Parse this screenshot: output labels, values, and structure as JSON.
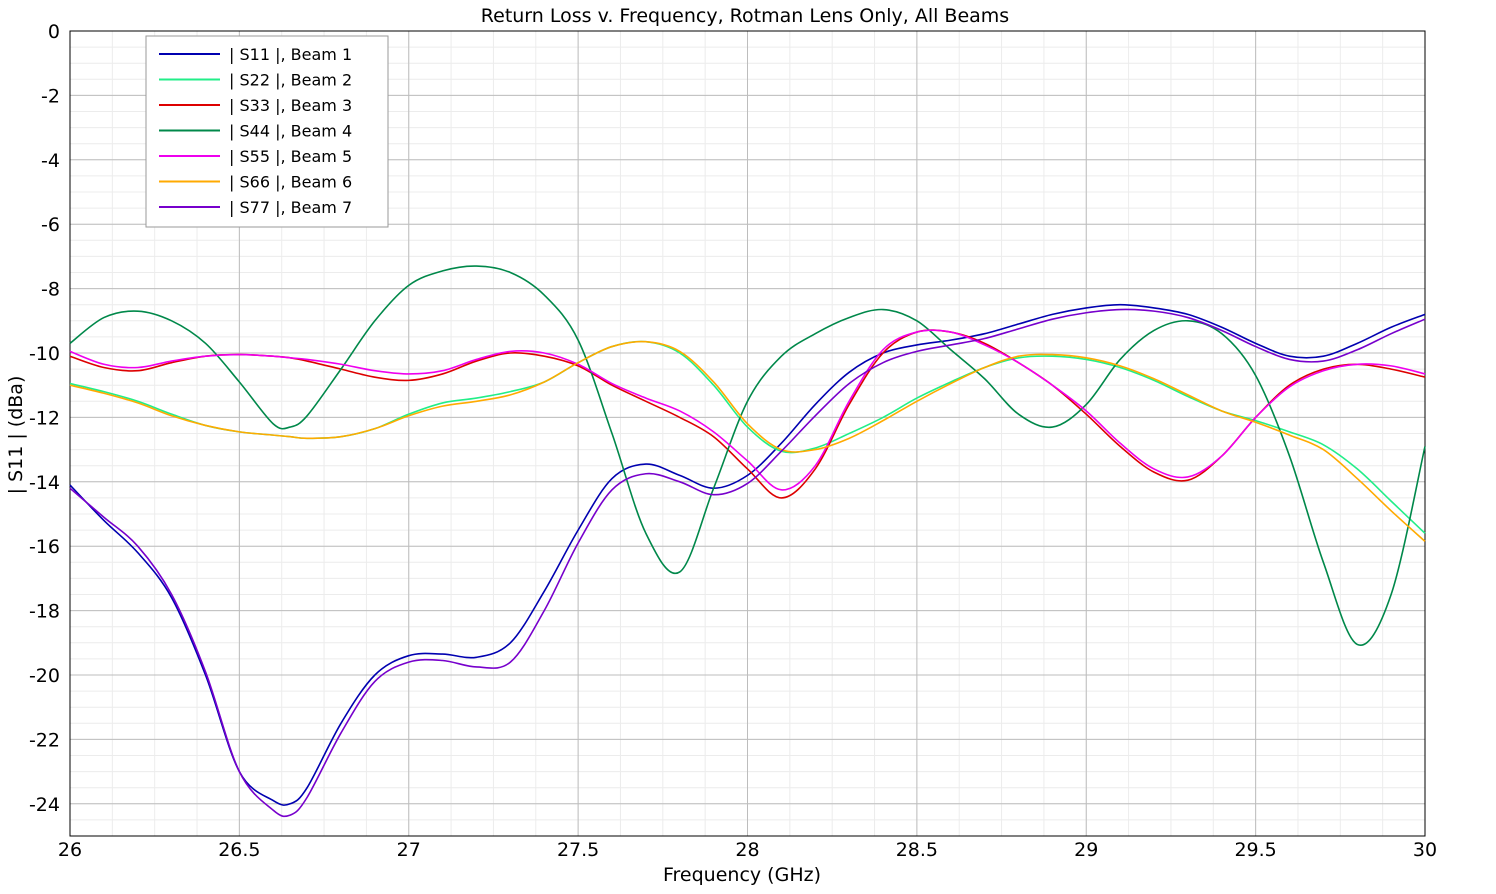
{
  "chart_data": {
    "type": "line",
    "title": "Return Loss v. Frequency, Rotman Lens Only, All Beams",
    "xlabel": "Frequency (GHz)",
    "ylabel": "| S11 | (dBa)",
    "xlim": [
      26,
      30
    ],
    "ylim": [
      -25,
      0
    ],
    "xticks": [
      26,
      26.5,
      27,
      27.5,
      28,
      28.5,
      29,
      29.5,
      30
    ],
    "xtick_labels": [
      "26",
      "26.5",
      "27",
      "27.5",
      "28",
      "28.5",
      "29",
      "29.5",
      "30"
    ],
    "yticks": [
      0,
      -2,
      -4,
      -6,
      -8,
      -10,
      -12,
      -14,
      -16,
      -18,
      -20,
      -22,
      -24
    ],
    "ytick_labels": [
      "0",
      "-2",
      "-4",
      "-6",
      "-8",
      "-10",
      "-12",
      "-14",
      "-16",
      "-18",
      "-20",
      "-22",
      "-24"
    ],
    "grid": true,
    "legend_position": "top-left",
    "x": [
      26.0,
      26.1,
      26.2,
      26.3,
      26.4,
      26.5,
      26.6,
      26.65,
      26.7,
      26.8,
      26.9,
      27.0,
      27.1,
      27.2,
      27.3,
      27.4,
      27.5,
      27.6,
      27.7,
      27.8,
      27.9,
      28.0,
      28.1,
      28.2,
      28.3,
      28.4,
      28.5,
      28.6,
      28.7,
      28.8,
      28.9,
      29.0,
      29.1,
      29.2,
      29.3,
      29.4,
      29.5,
      29.6,
      29.7,
      29.8,
      29.9,
      30.0
    ],
    "series": [
      {
        "name": "| S11 |, Beam 1",
        "color": "#0000b0",
        "values": [
          -14.1,
          -15.2,
          -16.2,
          -17.6,
          -20.0,
          -23.0,
          -23.9,
          -24.0,
          -23.5,
          -21.5,
          -20.0,
          -19.4,
          -19.35,
          -19.45,
          -19.0,
          -17.4,
          -15.5,
          -13.9,
          -13.45,
          -13.8,
          -14.2,
          -13.8,
          -12.8,
          -11.6,
          -10.6,
          -10.0,
          -9.75,
          -9.6,
          -9.4,
          -9.1,
          -8.8,
          -8.6,
          -8.5,
          -8.6,
          -8.8,
          -9.2,
          -9.7,
          -10.1,
          -10.1,
          -9.7,
          -9.2,
          -8.8
        ]
      },
      {
        "name": "| S22 |, Beam 2",
        "color": "#22ee88",
        "values": [
          -10.95,
          -11.2,
          -11.5,
          -11.9,
          -12.25,
          -12.45,
          -12.55,
          -12.6,
          -12.65,
          -12.6,
          -12.35,
          -11.9,
          -11.55,
          -11.4,
          -11.2,
          -10.9,
          -10.3,
          -9.8,
          -9.65,
          -10.0,
          -11.0,
          -12.3,
          -13.05,
          -12.95,
          -12.5,
          -12.0,
          -11.4,
          -10.9,
          -10.45,
          -10.15,
          -10.1,
          -10.2,
          -10.45,
          -10.85,
          -11.35,
          -11.8,
          -12.1,
          -12.45,
          -12.85,
          -13.6,
          -14.6,
          -15.6
        ]
      },
      {
        "name": "| S33 |, Beam 3",
        "color": "#dd0000",
        "values": [
          -10.1,
          -10.45,
          -10.55,
          -10.3,
          -10.1,
          -10.05,
          -10.1,
          -10.15,
          -10.25,
          -10.5,
          -10.75,
          -10.85,
          -10.65,
          -10.25,
          -10.0,
          -10.1,
          -10.4,
          -11.0,
          -11.5,
          -12.0,
          -12.6,
          -13.6,
          -14.5,
          -13.6,
          -11.6,
          -10.0,
          -9.35,
          -9.35,
          -9.7,
          -10.3,
          -11.0,
          -11.9,
          -12.9,
          -13.7,
          -13.95,
          -13.2,
          -12.0,
          -11.0,
          -10.5,
          -10.35,
          -10.5,
          -10.75
        ]
      },
      {
        "name": "| S44 |, Beam 4",
        "color": "#00884a",
        "values": [
          -9.7,
          -8.9,
          -8.7,
          -9.0,
          -9.7,
          -10.9,
          -12.2,
          -12.3,
          -11.95,
          -10.5,
          -9.0,
          -7.9,
          -7.45,
          -7.3,
          -7.5,
          -8.2,
          -9.6,
          -12.5,
          -15.6,
          -16.8,
          -14.2,
          -11.5,
          -10.1,
          -9.4,
          -8.9,
          -8.65,
          -9.0,
          -9.9,
          -10.8,
          -11.9,
          -12.3,
          -11.6,
          -10.2,
          -9.3,
          -9.0,
          -9.4,
          -10.7,
          -13.2,
          -16.5,
          -19.05,
          -17.5,
          -12.9
        ]
      },
      {
        "name": "| S55 |, Beam 5",
        "color": "#ee00ee",
        "values": [
          -9.95,
          -10.35,
          -10.45,
          -10.25,
          -10.1,
          -10.05,
          -10.1,
          -10.15,
          -10.2,
          -10.35,
          -10.55,
          -10.65,
          -10.55,
          -10.2,
          -9.95,
          -10.0,
          -10.35,
          -10.95,
          -11.4,
          -11.8,
          -12.45,
          -13.35,
          -14.25,
          -13.5,
          -11.5,
          -9.9,
          -9.35,
          -9.35,
          -9.75,
          -10.3,
          -11.0,
          -11.8,
          -12.8,
          -13.6,
          -13.85,
          -13.2,
          -12.0,
          -11.05,
          -10.55,
          -10.35,
          -10.4,
          -10.65
        ]
      },
      {
        "name": "| S66 |, Beam 6",
        "color": "#ffaa00",
        "values": [
          -11.0,
          -11.25,
          -11.55,
          -11.95,
          -12.25,
          -12.45,
          -12.55,
          -12.6,
          -12.65,
          -12.6,
          -12.35,
          -11.95,
          -11.65,
          -11.5,
          -11.3,
          -10.9,
          -10.3,
          -9.8,
          -9.65,
          -9.95,
          -10.9,
          -12.2,
          -13.0,
          -13.0,
          -12.65,
          -12.1,
          -11.5,
          -10.95,
          -10.45,
          -10.1,
          -10.05,
          -10.15,
          -10.4,
          -10.8,
          -11.3,
          -11.8,
          -12.15,
          -12.55,
          -13.0,
          -13.9,
          -14.9,
          -15.85
        ]
      },
      {
        "name": "| S77 |, Beam 7",
        "color": "#7700cc",
        "values": [
          -14.2,
          -15.1,
          -16.0,
          -17.5,
          -19.9,
          -23.0,
          -24.2,
          -24.35,
          -23.8,
          -21.8,
          -20.2,
          -19.6,
          -19.55,
          -19.75,
          -19.6,
          -18.0,
          -15.9,
          -14.25,
          -13.75,
          -14.0,
          -14.4,
          -14.05,
          -13.05,
          -11.95,
          -10.95,
          -10.3,
          -9.95,
          -9.75,
          -9.55,
          -9.25,
          -8.95,
          -8.75,
          -8.65,
          -8.7,
          -8.9,
          -9.3,
          -9.8,
          -10.2,
          -10.25,
          -9.9,
          -9.4,
          -8.95
        ]
      }
    ]
  }
}
